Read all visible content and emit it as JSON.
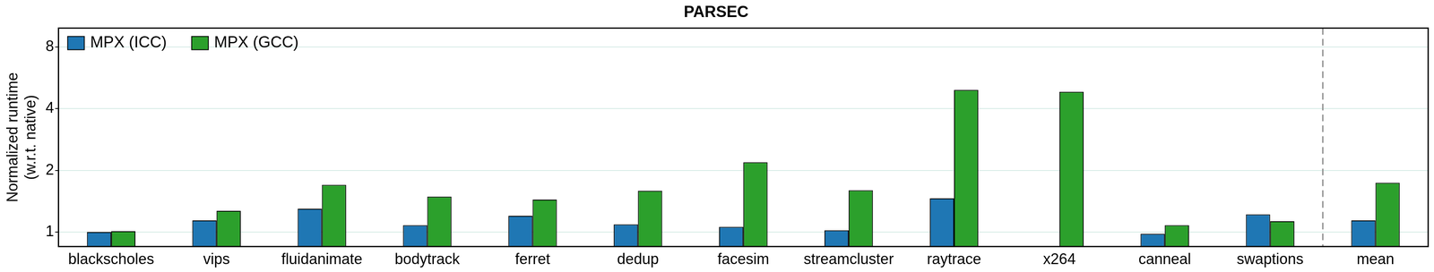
{
  "chart_data": {
    "type": "bar",
    "title": "PARSEC",
    "y_label": [
      "Normalized runtime",
      "(w.r.t. native)"
    ],
    "categories": [
      "blackscholes",
      "vips",
      "fluidanimate",
      "bodytrack",
      "ferret",
      "dedup",
      "facesim",
      "streamcluster",
      "raytrace",
      "x264",
      "canneal",
      "swaptions",
      "mean"
    ],
    "series": [
      {
        "name": "MPX (ICC)",
        "color": "#1f77b4",
        "values": [
          1.0,
          1.14,
          1.3,
          1.08,
          1.2,
          1.09,
          1.06,
          1.02,
          1.46,
          null,
          0.98,
          1.22,
          1.14
        ]
      },
      {
        "name": "MPX (GCC)",
        "color": "#2ca02c",
        "values": [
          1.01,
          1.27,
          1.7,
          1.49,
          1.44,
          1.59,
          2.19,
          1.6,
          4.94,
          4.84,
          1.08,
          1.13,
          1.74
        ]
      }
    ],
    "log": "y",
    "ylim": [
      0.85,
      9.9
    ],
    "yticks": [
      1,
      2,
      4,
      8
    ],
    "grid": true,
    "legend": "top-left"
  }
}
